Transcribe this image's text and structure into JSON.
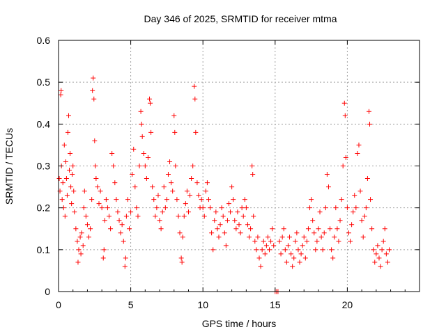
{
  "chart_data": {
    "type": "scatter",
    "title": "Day 346 of 2025, SRMTID for receiver mtma",
    "xlabel": "GPS time / hours",
    "ylabel": "SRMTID / TECUs",
    "xlim": [
      0,
      25
    ],
    "ylim": [
      0,
      0.6
    ],
    "xticks": [
      0,
      5,
      10,
      15,
      20
    ],
    "xtick_labels": [
      "0",
      "5",
      "10",
      "15",
      "20"
    ],
    "yticks": [
      0,
      0.1,
      0.2,
      0.3,
      0.4,
      0.5,
      0.6
    ],
    "ytick_labels": [
      "0",
      "0.1",
      "0.2",
      "0.3",
      "0.4",
      "0.5",
      "0.6"
    ],
    "grid": true,
    "marker": "plus",
    "series": [
      {
        "name": "SRMTID",
        "color": "#ff0000",
        "points": [
          [
            0.05,
            0.27
          ],
          [
            0.1,
            0.24
          ],
          [
            0.15,
            0.47
          ],
          [
            0.18,
            0.48
          ],
          [
            0.2,
            0.3
          ],
          [
            0.25,
            0.22
          ],
          [
            0.3,
            0.26
          ],
          [
            0.35,
            0.2
          ],
          [
            0.4,
            0.35
          ],
          [
            0.45,
            0.18
          ],
          [
            0.5,
            0.31
          ],
          [
            0.55,
            0.27
          ],
          [
            0.6,
            0.23
          ],
          [
            0.65,
            0.38
          ],
          [
            0.7,
            0.42
          ],
          [
            0.75,
            0.29
          ],
          [
            0.8,
            0.33
          ],
          [
            0.85,
            0.25
          ],
          [
            0.9,
            0.21
          ],
          [
            0.95,
            0.28
          ],
          [
            1.0,
            0.3
          ],
          [
            1.05,
            0.24
          ],
          [
            1.1,
            0.19
          ],
          [
            1.2,
            0.15
          ],
          [
            1.3,
            0.12
          ],
          [
            1.35,
            0.07
          ],
          [
            1.4,
            0.1
          ],
          [
            1.5,
            0.13
          ],
          [
            1.55,
            0.09
          ],
          [
            1.6,
            0.14
          ],
          [
            1.7,
            0.11
          ],
          [
            1.75,
            0.2
          ],
          [
            1.8,
            0.24
          ],
          [
            1.9,
            0.18
          ],
          [
            2.0,
            0.16
          ],
          [
            2.1,
            0.13
          ],
          [
            2.2,
            0.15
          ],
          [
            2.3,
            0.22
          ],
          [
            2.35,
            0.48
          ],
          [
            2.4,
            0.51
          ],
          [
            2.45,
            0.46
          ],
          [
            2.5,
            0.36
          ],
          [
            2.55,
            0.3
          ],
          [
            2.6,
            0.27
          ],
          [
            2.7,
            0.25
          ],
          [
            2.8,
            0.21
          ],
          [
            2.9,
            0.24
          ],
          [
            3.0,
            0.2
          ],
          [
            3.1,
            0.08
          ],
          [
            3.15,
            0.1
          ],
          [
            3.2,
            0.17
          ],
          [
            3.3,
            0.22
          ],
          [
            3.4,
            0.2
          ],
          [
            3.5,
            0.18
          ],
          [
            3.6,
            0.15
          ],
          [
            3.7,
            0.33
          ],
          [
            3.8,
            0.3
          ],
          [
            3.9,
            0.26
          ],
          [
            4.0,
            0.22
          ],
          [
            4.1,
            0.19
          ],
          [
            4.2,
            0.17
          ],
          [
            4.3,
            0.14
          ],
          [
            4.4,
            0.16
          ],
          [
            4.5,
            0.12
          ],
          [
            4.6,
            0.06
          ],
          [
            4.65,
            0.08
          ],
          [
            4.7,
            0.18
          ],
          [
            4.8,
            0.22
          ],
          [
            4.9,
            0.15
          ],
          [
            5.0,
            0.19
          ],
          [
            5.1,
            0.28
          ],
          [
            5.2,
            0.34
          ],
          [
            5.3,
            0.25
          ],
          [
            5.4,
            0.2
          ],
          [
            5.5,
            0.18
          ],
          [
            5.6,
            0.3
          ],
          [
            5.7,
            0.43
          ],
          [
            5.75,
            0.4
          ],
          [
            5.8,
            0.37
          ],
          [
            5.9,
            0.33
          ],
          [
            6.0,
            0.3
          ],
          [
            6.1,
            0.27
          ],
          [
            6.2,
            0.32
          ],
          [
            6.3,
            0.46
          ],
          [
            6.35,
            0.45
          ],
          [
            6.4,
            0.38
          ],
          [
            6.5,
            0.25
          ],
          [
            6.6,
            0.22
          ],
          [
            6.7,
            0.18
          ],
          [
            6.8,
            0.2
          ],
          [
            6.9,
            0.23
          ],
          [
            7.0,
            0.17
          ],
          [
            7.1,
            0.15
          ],
          [
            7.2,
            0.19
          ],
          [
            7.3,
            0.25
          ],
          [
            7.4,
            0.2
          ],
          [
            7.5,
            0.22
          ],
          [
            7.6,
            0.28
          ],
          [
            7.7,
            0.31
          ],
          [
            7.8,
            0.26
          ],
          [
            7.9,
            0.24
          ],
          [
            8.0,
            0.42
          ],
          [
            8.05,
            0.38
          ],
          [
            8.1,
            0.3
          ],
          [
            8.2,
            0.22
          ],
          [
            8.3,
            0.18
          ],
          [
            8.4,
            0.14
          ],
          [
            8.5,
            0.08
          ],
          [
            8.55,
            0.07
          ],
          [
            8.6,
            0.13
          ],
          [
            8.7,
            0.18
          ],
          [
            8.8,
            0.21
          ],
          [
            8.9,
            0.24
          ],
          [
            9.0,
            0.19
          ],
          [
            9.1,
            0.23
          ],
          [
            9.2,
            0.27
          ],
          [
            9.3,
            0.3
          ],
          [
            9.4,
            0.49
          ],
          [
            9.45,
            0.46
          ],
          [
            9.5,
            0.38
          ],
          [
            9.6,
            0.26
          ],
          [
            9.7,
            0.23
          ],
          [
            9.8,
            0.2
          ],
          [
            9.9,
            0.22
          ],
          [
            10.0,
            0.2
          ],
          [
            10.1,
            0.18
          ],
          [
            10.2,
            0.24
          ],
          [
            10.3,
            0.26
          ],
          [
            10.4,
            0.22
          ],
          [
            10.5,
            0.2
          ],
          [
            10.6,
            0.14
          ],
          [
            10.7,
            0.1
          ],
          [
            10.8,
            0.17
          ],
          [
            10.9,
            0.19
          ],
          [
            11.0,
            0.15
          ],
          [
            11.1,
            0.13
          ],
          [
            11.2,
            0.16
          ],
          [
            11.3,
            0.2
          ],
          [
            11.4,
            0.18
          ],
          [
            11.5,
            0.14
          ],
          [
            11.6,
            0.11
          ],
          [
            11.7,
            0.17
          ],
          [
            11.8,
            0.21
          ],
          [
            11.9,
            0.19
          ],
          [
            12.0,
            0.25
          ],
          [
            12.1,
            0.22
          ],
          [
            12.2,
            0.17
          ],
          [
            12.3,
            0.15
          ],
          [
            12.4,
            0.19
          ],
          [
            12.5,
            0.16
          ],
          [
            12.6,
            0.14
          ],
          [
            12.7,
            0.2
          ],
          [
            12.8,
            0.18
          ],
          [
            12.9,
            0.22
          ],
          [
            13.0,
            0.2
          ],
          [
            13.1,
            0.16
          ],
          [
            13.2,
            0.13
          ],
          [
            13.3,
            0.15
          ],
          [
            13.4,
            0.3
          ],
          [
            13.45,
            0.28
          ],
          [
            13.5,
            0.18
          ],
          [
            13.6,
            0.12
          ],
          [
            13.7,
            0.1
          ],
          [
            13.8,
            0.13
          ],
          [
            13.9,
            0.08
          ],
          [
            14.0,
            0.06
          ],
          [
            14.1,
            0.1
          ],
          [
            14.2,
            0.12
          ],
          [
            14.3,
            0.09
          ],
          [
            14.4,
            0.11
          ],
          [
            14.5,
            0.13
          ],
          [
            14.6,
            0.1
          ],
          [
            14.7,
            0.12
          ],
          [
            14.8,
            0.15
          ],
          [
            14.9,
            0.11
          ],
          [
            15.0,
            0.0
          ],
          [
            15.1,
            0.0
          ],
          [
            15.2,
            0.0
          ],
          [
            15.3,
            0.12
          ],
          [
            15.4,
            0.09
          ],
          [
            15.5,
            0.13
          ],
          [
            15.6,
            0.15
          ],
          [
            15.7,
            0.1
          ],
          [
            15.8,
            0.07
          ],
          [
            15.9,
            0.11
          ],
          [
            16.0,
            0.13
          ],
          [
            16.1,
            0.09
          ],
          [
            16.2,
            0.06
          ],
          [
            16.3,
            0.08
          ],
          [
            16.4,
            0.12
          ],
          [
            16.5,
            0.14
          ],
          [
            16.6,
            0.1
          ],
          [
            16.7,
            0.07
          ],
          [
            16.8,
            0.09
          ],
          [
            16.9,
            0.11
          ],
          [
            17.0,
            0.13
          ],
          [
            17.1,
            0.08
          ],
          [
            17.2,
            0.12
          ],
          [
            17.3,
            0.15
          ],
          [
            17.4,
            0.2
          ],
          [
            17.5,
            0.22
          ],
          [
            17.6,
            0.17
          ],
          [
            17.7,
            0.14
          ],
          [
            17.8,
            0.1
          ],
          [
            17.9,
            0.12
          ],
          [
            18.0,
            0.15
          ],
          [
            18.1,
            0.19
          ],
          [
            18.2,
            0.13
          ],
          [
            18.3,
            0.1
          ],
          [
            18.4,
            0.14
          ],
          [
            18.5,
            0.2
          ],
          [
            18.6,
            0.28
          ],
          [
            18.7,
            0.25
          ],
          [
            18.8,
            0.15
          ],
          [
            18.9,
            0.1
          ],
          [
            19.0,
            0.08
          ],
          [
            19.1,
            0.13
          ],
          [
            19.2,
            0.2
          ],
          [
            19.3,
            0.15
          ],
          [
            19.4,
            0.12
          ],
          [
            19.5,
            0.17
          ],
          [
            19.6,
            0.22
          ],
          [
            19.7,
            0.3
          ],
          [
            19.8,
            0.45
          ],
          [
            19.85,
            0.42
          ],
          [
            19.9,
            0.32
          ],
          [
            20.0,
            0.2
          ],
          [
            20.1,
            0.14
          ],
          [
            20.2,
            0.12
          ],
          [
            20.3,
            0.16
          ],
          [
            20.4,
            0.19
          ],
          [
            20.5,
            0.23
          ],
          [
            20.6,
            0.2
          ],
          [
            20.7,
            0.33
          ],
          [
            20.8,
            0.35
          ],
          [
            20.9,
            0.24
          ],
          [
            21.0,
            0.17
          ],
          [
            21.1,
            0.13
          ],
          [
            21.2,
            0.18
          ],
          [
            21.3,
            0.2
          ],
          [
            21.4,
            0.27
          ],
          [
            21.5,
            0.43
          ],
          [
            21.55,
            0.4
          ],
          [
            21.6,
            0.22
          ],
          [
            21.7,
            0.15
          ],
          [
            21.8,
            0.1
          ],
          [
            21.9,
            0.07
          ],
          [
            22.0,
            0.09
          ],
          [
            22.1,
            0.11
          ],
          [
            22.2,
            0.08
          ],
          [
            22.3,
            0.06
          ],
          [
            22.4,
            0.1
          ],
          [
            22.5,
            0.12
          ],
          [
            22.6,
            0.15
          ],
          [
            22.7,
            0.09
          ],
          [
            22.8,
            0.07
          ],
          [
            22.9,
            0.1
          ]
        ]
      }
    ]
  }
}
